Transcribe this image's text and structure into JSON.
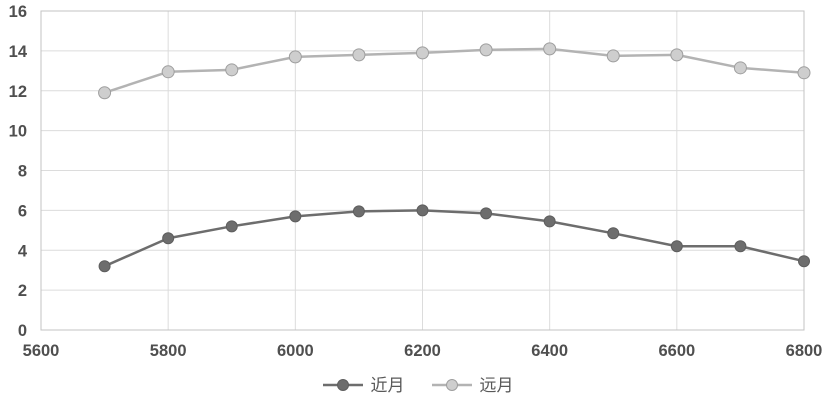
{
  "chart_data": {
    "type": "line",
    "title": "",
    "xlabel": "",
    "ylabel": "",
    "x": [
      5700,
      5800,
      5900,
      6000,
      6100,
      6200,
      6300,
      6400,
      6500,
      6600,
      6700,
      6800
    ],
    "series": [
      {
        "name": "近月",
        "values": [
          3.2,
          4.6,
          5.2,
          5.7,
          5.95,
          6.0,
          5.85,
          5.45,
          4.85,
          4.2,
          4.2,
          3.45
        ],
        "color": "#6d6d6d",
        "marker_fill": "#6d6d6d",
        "marker_stroke": "#5e5e5e"
      },
      {
        "name": "远月",
        "values": [
          11.9,
          12.95,
          13.05,
          13.7,
          13.8,
          13.9,
          14.05,
          14.1,
          13.75,
          13.8,
          13.15,
          12.9
        ],
        "color": "#b3b3b3",
        "marker_fill": "#cecece",
        "marker_stroke": "#9e9e9e"
      }
    ],
    "xlim": [
      5600,
      6800
    ],
    "ylim": [
      0,
      16
    ],
    "x_ticks": [
      5600,
      5800,
      6000,
      6200,
      6400,
      6600,
      6800
    ],
    "y_ticks": [
      0,
      2,
      4,
      6,
      8,
      10,
      12,
      14,
      16
    ],
    "grid": "on",
    "legend_position": "bottom-center",
    "grid_color": "#dcdcdc",
    "axis_border_color": "#c3c3c3",
    "tick_label_color": "#4f4f4f",
    "background_color": "#ffffff"
  }
}
